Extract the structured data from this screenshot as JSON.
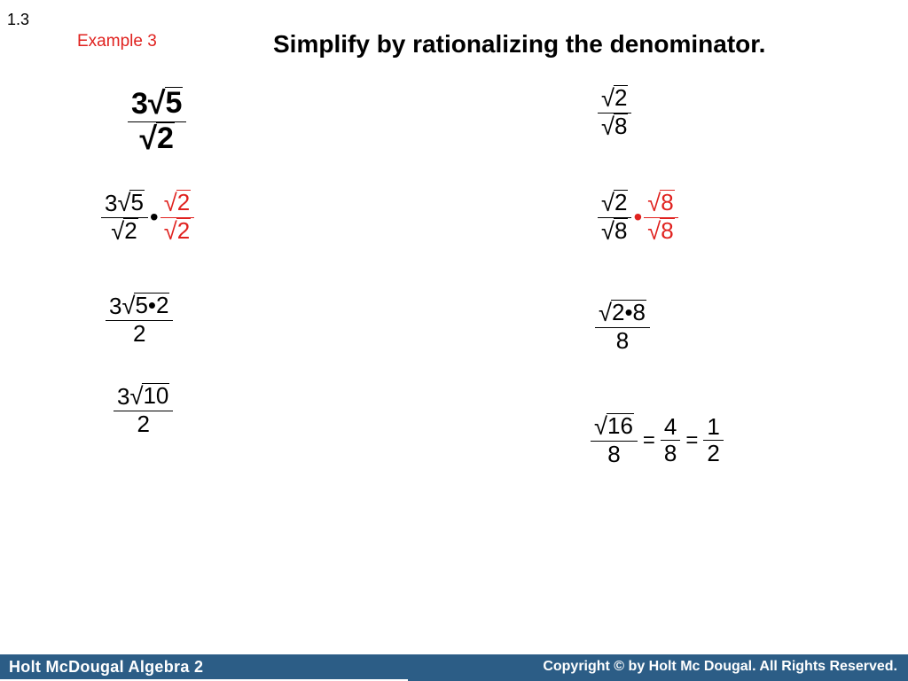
{
  "header": {
    "section": "1.3",
    "example": "Example 3",
    "title": "Simplify by rationalizing the denominator."
  },
  "left": {
    "step1": {
      "coef": "3",
      "rad": "5",
      "den_rad": "2"
    },
    "step2": {
      "coef": "3",
      "rad": "5",
      "den_rad": "2",
      "dot": "•",
      "mult_num_rad": "2",
      "mult_den_rad": "2"
    },
    "step3": {
      "coef": "3",
      "rad": "5•2",
      "den": "2"
    },
    "step4": {
      "coef": "3",
      "rad": "10",
      "den": "2"
    }
  },
  "right": {
    "step1": {
      "num_rad": "2",
      "den_rad": "8"
    },
    "step2": {
      "num_rad": "2",
      "den_rad": "8",
      "dot": "•",
      "mult_num_rad": "8",
      "mult_den_rad": "8"
    },
    "step3": {
      "rad": "2•8",
      "den": "8"
    },
    "step4": {
      "rad": "16",
      "den": "8",
      "eq": "=",
      "n2": "4",
      "d2": "8",
      "n3": "1",
      "d3": "2"
    }
  },
  "footer": {
    "left": "Holt McDougal Algebra 2",
    "right": "Copyright © by Holt Mc Dougal. All Rights Reserved."
  },
  "colors": {
    "accent": "#e0221f",
    "footer_bg": "#2c5d86"
  }
}
